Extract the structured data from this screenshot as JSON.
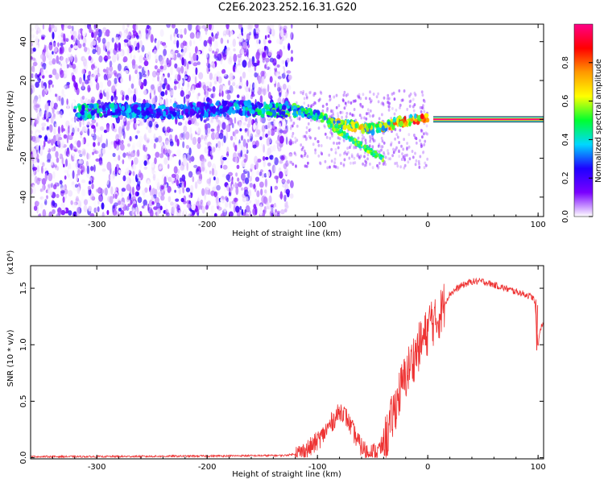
{
  "title": "C2E6.2023.252.16.31.G20",
  "chart_data": [
    {
      "type": "heatmap",
      "xlabel": "Height of straight line (km)",
      "ylabel": "Frequency (Hz)",
      "xlim": [
        -360,
        105
      ],
      "ylim": [
        -50,
        49
      ],
      "x_ticks": [
        -300,
        -200,
        -100,
        0,
        100
      ],
      "y_ticks": [
        40,
        20,
        0,
        -20,
        -40
      ],
      "colorbar": {
        "label": "Normalized spectral amplitude",
        "range": [
          0.0,
          1.0
        ],
        "ticks": [
          0.0,
          0.2,
          0.4,
          0.6,
          0.8
        ],
        "colors": [
          "#ffffff",
          "#7a00ff",
          "#1e00ff",
          "#00d8ff",
          "#00ff30",
          "#ffff00",
          "#ff9900",
          "#ff0000",
          "#ff0088"
        ]
      },
      "features": {
        "noise_region_x": [
          -360,
          -123
        ],
        "signal_track": [
          {
            "x": -300,
            "f": 4,
            "amp": 0.45
          },
          {
            "x": -285,
            "f": 5,
            "amp": 0.4
          },
          {
            "x": -235,
            "f": 4,
            "amp": 0.35
          },
          {
            "x": -200,
            "f": 5,
            "amp": 0.35
          },
          {
            "x": -175,
            "f": 6,
            "amp": 0.4
          },
          {
            "x": -150,
            "f": 5,
            "amp": 0.45
          },
          {
            "x": -130,
            "f": 5,
            "amp": 0.55
          },
          {
            "x": -115,
            "f": 4,
            "amp": 0.6
          },
          {
            "x": -100,
            "f": 2,
            "amp": 0.6
          },
          {
            "x": -85,
            "f": -2,
            "amp": 0.65
          },
          {
            "x": -70,
            "f": -3,
            "amp": 0.7
          },
          {
            "x": -55,
            "f": -5,
            "amp": 0.75
          },
          {
            "x": -40,
            "f": -4,
            "amp": 0.75
          },
          {
            "x": -25,
            "f": -1,
            "amp": 0.8
          },
          {
            "x": -10,
            "f": 0,
            "amp": 0.85
          },
          {
            "x": 0,
            "f": 1,
            "amp": 0.9
          }
        ],
        "carrier_line": {
          "x_start": 5,
          "x_end": 105,
          "f": 0,
          "amp": 1.0
        }
      }
    },
    {
      "type": "line",
      "xlabel": "Height of straight line (km)",
      "ylabel": "SNR (10 * v/v)",
      "y_multiplier": "(x10⁴)",
      "xlim": [
        -360,
        105
      ],
      "ylim": [
        -0.01,
        1.7
      ],
      "x_ticks": [
        -300,
        -200,
        -100,
        0,
        100
      ],
      "y_ticks": [
        0.0,
        0.5,
        1.0,
        1.5
      ],
      "color": "#ee3333",
      "series": [
        {
          "x": [
            -360,
            -300,
            -200,
            -130,
            -115,
            -105,
            -95,
            -88,
            -82,
            -78,
            -74,
            -70,
            -66,
            -62,
            -58,
            -52,
            -46,
            -40,
            -36,
            -32,
            -28,
            -24,
            -20,
            -16,
            -12,
            -8,
            -4,
            0,
            3,
            6,
            10,
            15,
            20,
            30,
            40,
            50,
            60,
            70,
            80,
            90,
            95,
            97,
            99,
            100,
            102,
            105
          ],
          "y": [
            0.01,
            0.01,
            0.015,
            0.02,
            0.04,
            0.1,
            0.2,
            0.3,
            0.38,
            0.42,
            0.36,
            0.28,
            0.2,
            0.12,
            0.07,
            0.04,
            0.05,
            0.12,
            0.22,
            0.36,
            0.5,
            0.62,
            0.72,
            0.82,
            0.9,
            0.98,
            1.05,
            1.12,
            1.25,
            1.18,
            1.25,
            1.36,
            1.45,
            1.52,
            1.56,
            1.56,
            1.53,
            1.5,
            1.47,
            1.44,
            1.42,
            1.38,
            1.1,
            0.98,
            1.15,
            1.18
          ]
        }
      ]
    }
  ]
}
